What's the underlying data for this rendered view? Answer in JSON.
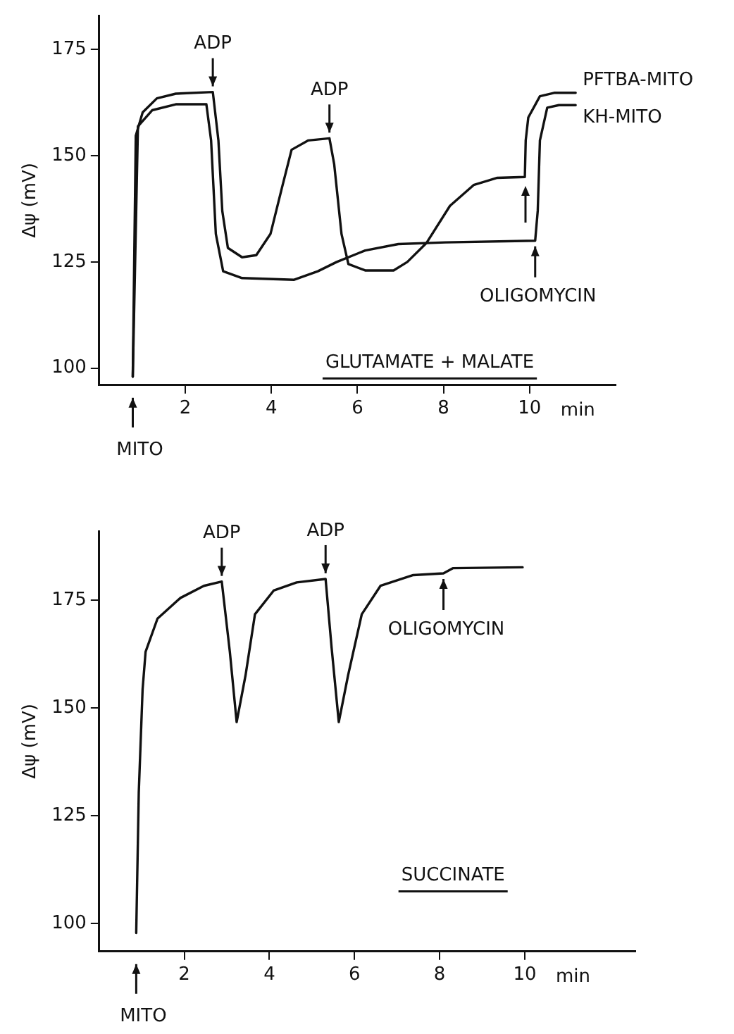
{
  "chart_data": [
    {
      "type": "line",
      "ylabel": "Δψ (mV)",
      "xlabel": "min",
      "xlim": [
        0,
        12
      ],
      "xticks": [
        2,
        4,
        6,
        8,
        10
      ],
      "ylim": [
        96,
        183
      ],
      "yticks": [
        100,
        125,
        150,
        175
      ],
      "grid": false,
      "legend": false,
      "series": [
        {
          "name": "PFTBA-MITO",
          "color": "#111111",
          "x": [
            0.78,
            0.85,
            1.01,
            1.34,
            1.78,
            2.64,
            2.77,
            2.86,
            2.99,
            3.32,
            3.65,
            3.98,
            4.25,
            4.47,
            4.86,
            5.35,
            5.46,
            5.63,
            5.79,
            6.18,
            6.84,
            7.16,
            7.6,
            8.15,
            8.7,
            9.25,
            9.89,
            9.91,
            9.97,
            10.24,
            10.57,
            11.07
          ],
          "values": [
            98,
            154.7,
            160.2,
            163.5,
            164.6,
            165,
            153.6,
            137,
            128.3,
            126.1,
            126.6,
            131.6,
            142.6,
            151.4,
            153.6,
            154.1,
            148,
            131.6,
            124.5,
            123,
            123,
            125,
            129.4,
            138.2,
            143.1,
            144.8,
            145,
            153.6,
            159,
            164,
            164.8,
            164.8
          ]
        },
        {
          "name": "KH-MITO",
          "color": "#111111",
          "x": [
            0.78,
            0.9,
            1.23,
            1.78,
            2.49,
            2.6,
            2.71,
            2.88,
            3.32,
            4.53,
            5.08,
            5.52,
            6.18,
            6.95,
            8.04,
            10.13,
            10.19,
            10.24,
            10.41,
            10.68,
            11.07
          ],
          "values": [
            98,
            156.9,
            160.7,
            162.1,
            162.1,
            153.6,
            131.6,
            122.8,
            121.2,
            120.8,
            122.8,
            125,
            127.7,
            129.2,
            129.6,
            130,
            137.1,
            153.6,
            161.3,
            161.9,
            161.9
          ]
        }
      ],
      "annotations": [
        {
          "text": "ADP",
          "x": 2.64,
          "y": 165
        },
        {
          "text": "ADP",
          "x": 5.35,
          "y": 154.1
        },
        {
          "text": "OLIGOMYCIN",
          "x": 10.13,
          "y": 130
        },
        {
          "text": "MITO",
          "x": 0.78
        },
        "GLUTAMATE + MALATE"
      ]
    },
    {
      "type": "line",
      "ylabel": "Δψ (mV)",
      "xlabel": "min",
      "xlim": [
        0,
        12.6
      ],
      "xticks": [
        2,
        4,
        6,
        8,
        10
      ],
      "ylim": [
        93.5,
        191
      ],
      "yticks": [
        100,
        125,
        150,
        175
      ],
      "grid": false,
      "legend": false,
      "series": [
        {
          "color": "#111111",
          "x": [
            0.87,
            0.93,
            1.02,
            1.09,
            1.37,
            1.91,
            2.46,
            2.88,
            3.07,
            3.23,
            3.44,
            3.66,
            4.1,
            4.64,
            5.32,
            5.46,
            5.63,
            5.85,
            6.17,
            6.61,
            7.38,
            8.09,
            8.31,
            9.95
          ],
          "values": [
            97.8,
            130.4,
            154.3,
            163,
            170.7,
            175.5,
            178.3,
            179.3,
            163,
            146.7,
            157.6,
            171.7,
            177.2,
            179.1,
            179.9,
            164.1,
            146.7,
            157.6,
            171.7,
            178.3,
            180.8,
            181.2,
            182.4,
            182.6
          ]
        }
      ],
      "annotations": [
        {
          "text": "ADP",
          "x": 2.88,
          "y": 179.3
        },
        {
          "text": "ADP",
          "x": 5.32,
          "y": 179.9
        },
        {
          "text": "OLIGOMYCIN",
          "x": 8.09,
          "y": 181.2
        },
        {
          "text": "MITO",
          "x": 0.87
        },
        "SUCCINATE"
      ]
    }
  ]
}
